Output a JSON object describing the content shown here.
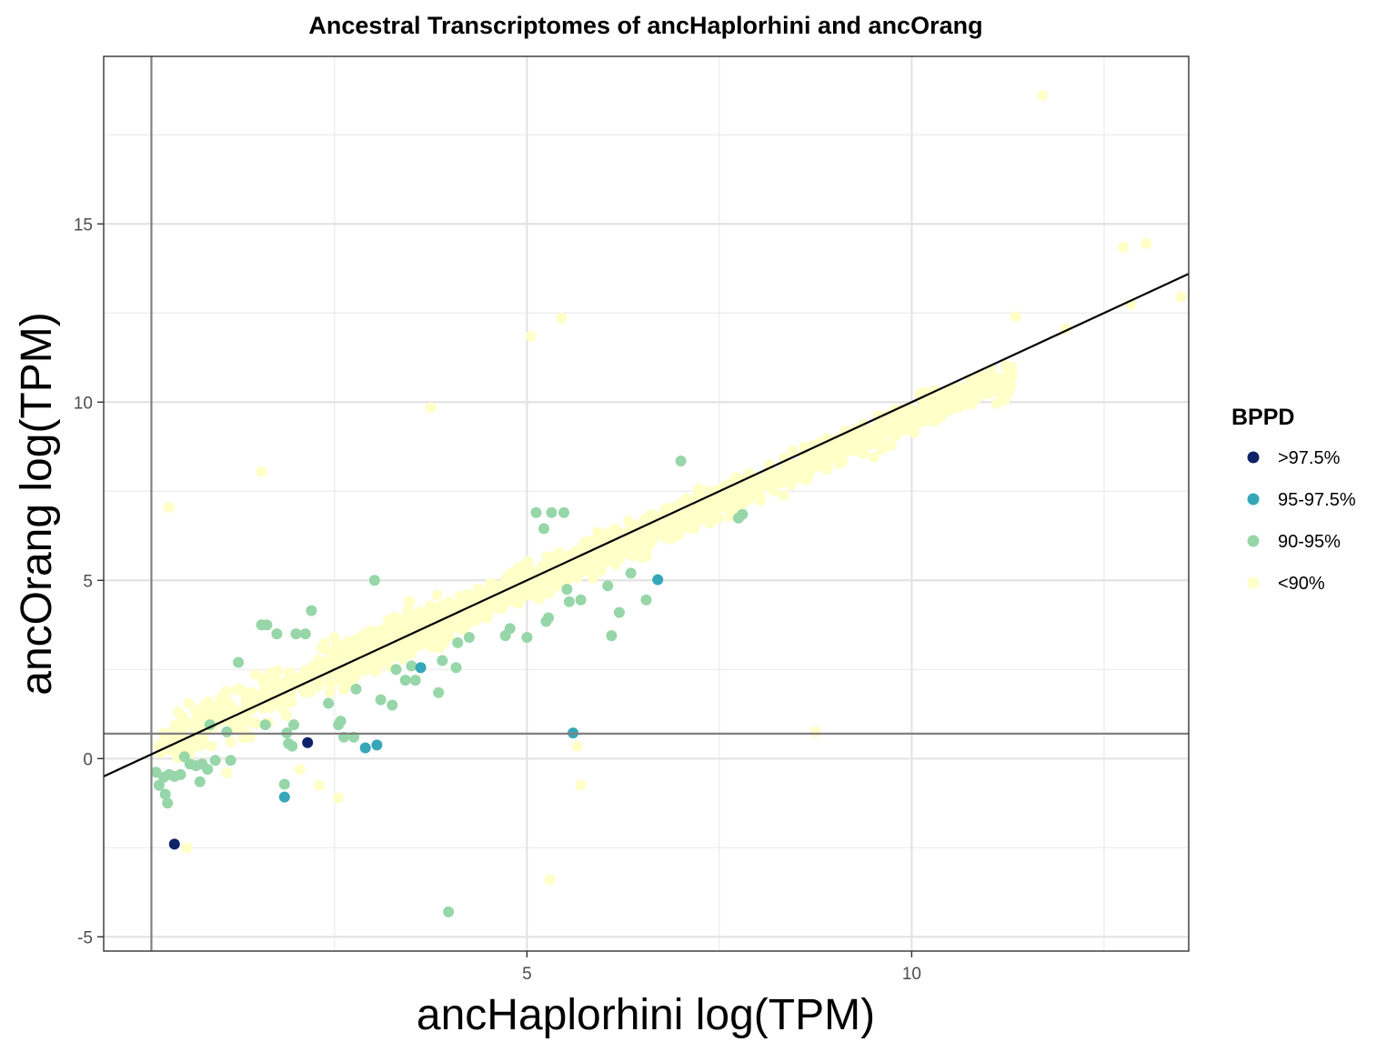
{
  "chart_data": {
    "type": "scatter",
    "title": "Ancestral Transcriptomes of ancHaplorhini and ancOrang",
    "xlabel": "ancHaplorhini log(TPM)",
    "ylabel": "ancOrang log(TPM)",
    "xlim": [
      -0.5,
      13.6
    ],
    "ylim": [
      -5.4,
      19.7
    ],
    "x_ticks": [
      5,
      10
    ],
    "x_tick_labels": [
      "5",
      "10"
    ],
    "y_ticks": [
      -5,
      0,
      5,
      10,
      15
    ],
    "y_tick_labels": [
      "-5",
      "0",
      "5",
      "10",
      "15"
    ],
    "grid": true,
    "reference_lines": {
      "vertical_x": 0.12,
      "horizontal_y": 0.7,
      "identity_line": "y = x"
    },
    "legend": {
      "title": "BPPD",
      "placement": "right",
      "entries": [
        {
          "label": ">97.5%",
          "color": "#102369"
        },
        {
          "label": "95-97.5%",
          "color": "#35a7b9"
        },
        {
          "label": "90-95%",
          "color": "#96d6a8"
        },
        {
          "label": "<90%",
          "color": "#ffffc8"
        }
      ]
    },
    "bulk_cloud": {
      "category": "<90%",
      "description_points": 1800,
      "x_range": [
        0.2,
        11.3
      ],
      "relation": "y ≈ 0.93x + 0.25, widening spread at low x"
    },
    "series": [
      {
        "name": ">97.5%",
        "color": "#102369",
        "points": [
          [
            0.42,
            -2.4
          ],
          [
            2.15,
            0.45
          ]
        ]
      },
      {
        "name": "95-97.5%",
        "color": "#35a7b9",
        "points": [
          [
            1.85,
            -1.08
          ],
          [
            2.9,
            0.3
          ],
          [
            3.05,
            0.38
          ],
          [
            3.62,
            2.55
          ],
          [
            5.6,
            0.72
          ],
          [
            6.7,
            5.02
          ]
        ]
      },
      {
        "name": "90-95%",
        "color": "#96d6a8",
        "points": [
          [
            0.18,
            -0.38
          ],
          [
            0.22,
            -0.75
          ],
          [
            0.28,
            -0.52
          ],
          [
            0.3,
            -1.0
          ],
          [
            0.33,
            -1.25
          ],
          [
            0.35,
            -0.45
          ],
          [
            0.42,
            -0.5
          ],
          [
            0.5,
            -0.45
          ],
          [
            0.55,
            0.05
          ],
          [
            0.62,
            -0.15
          ],
          [
            0.7,
            -0.2
          ],
          [
            0.75,
            -0.65
          ],
          [
            0.78,
            -0.15
          ],
          [
            0.85,
            -0.3
          ],
          [
            0.88,
            0.95
          ],
          [
            0.95,
            -0.05
          ],
          [
            1.1,
            0.75
          ],
          [
            1.15,
            -0.05
          ],
          [
            1.25,
            2.7
          ],
          [
            1.55,
            3.75
          ],
          [
            1.6,
            0.95
          ],
          [
            1.62,
            3.75
          ],
          [
            1.75,
            3.5
          ],
          [
            1.85,
            -0.72
          ],
          [
            1.88,
            0.72
          ],
          [
            1.9,
            0.42
          ],
          [
            1.95,
            0.35
          ],
          [
            1.97,
            0.95
          ],
          [
            2.0,
            3.5
          ],
          [
            2.12,
            3.5
          ],
          [
            2.2,
            4.15
          ],
          [
            2.42,
            1.55
          ],
          [
            2.55,
            0.95
          ],
          [
            2.58,
            1.05
          ],
          [
            2.62,
            0.6
          ],
          [
            2.75,
            0.6
          ],
          [
            2.78,
            1.95
          ],
          [
            3.02,
            5.0
          ],
          [
            3.1,
            1.65
          ],
          [
            3.25,
            1.5
          ],
          [
            3.3,
            2.5
          ],
          [
            3.42,
            2.2
          ],
          [
            3.5,
            2.6
          ],
          [
            3.55,
            2.2
          ],
          [
            3.85,
            1.85
          ],
          [
            3.9,
            2.75
          ],
          [
            4.08,
            2.55
          ],
          [
            4.1,
            3.25
          ],
          [
            4.25,
            3.4
          ],
          [
            4.72,
            3.45
          ],
          [
            4.78,
            3.65
          ],
          [
            5.0,
            3.4
          ],
          [
            5.12,
            6.9
          ],
          [
            5.22,
            6.45
          ],
          [
            5.25,
            3.85
          ],
          [
            5.28,
            3.95
          ],
          [
            5.32,
            6.9
          ],
          [
            5.48,
            6.9
          ],
          [
            5.52,
            4.75
          ],
          [
            5.55,
            4.4
          ],
          [
            5.7,
            4.45
          ],
          [
            6.05,
            4.85
          ],
          [
            6.1,
            3.45
          ],
          [
            6.2,
            4.1
          ],
          [
            6.35,
            5.2
          ],
          [
            6.55,
            4.45
          ],
          [
            7.0,
            8.35
          ],
          [
            7.75,
            6.75
          ],
          [
            7.8,
            6.85
          ],
          [
            3.98,
            -4.3
          ]
        ]
      },
      {
        "name": "<90%",
        "color": "#ffffc8",
        "points": [
          [
            0.35,
            7.05
          ],
          [
            1.55,
            8.05
          ],
          [
            0.58,
            -2.5
          ],
          [
            2.55,
            -1.1
          ],
          [
            3.75,
            9.85
          ],
          [
            5.05,
            11.85
          ],
          [
            5.45,
            12.35
          ],
          [
            5.3,
            -3.4
          ],
          [
            5.65,
            0.35
          ],
          [
            5.7,
            -0.75
          ],
          [
            8.75,
            0.75
          ],
          [
            11.7,
            18.6
          ],
          [
            12.75,
            14.35
          ],
          [
            13.05,
            14.45
          ],
          [
            13.5,
            12.95
          ],
          [
            12.85,
            12.75
          ],
          [
            11.35,
            12.4
          ],
          [
            12.0,
            12.05
          ],
          [
            2.3,
            -0.75
          ],
          [
            1.1,
            -0.4
          ],
          [
            0.9,
            0.35
          ],
          [
            1.4,
            0.6
          ],
          [
            2.05,
            -0.3
          ],
          [
            0.5,
            0.1
          ]
        ]
      }
    ]
  }
}
